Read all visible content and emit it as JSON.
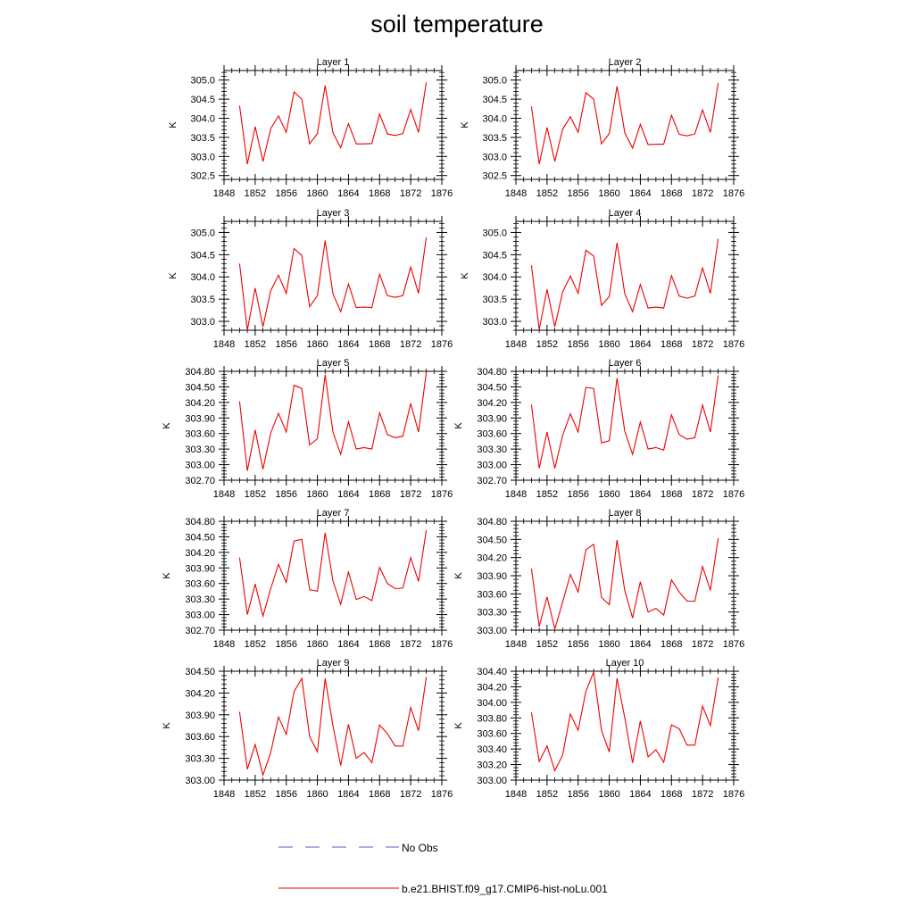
{
  "title": "soil temperature",
  "legend": {
    "entries": [
      {
        "label": "No Obs",
        "color": "#5b5bc8",
        "style": "dashed"
      },
      {
        "label": "b.e21.BHIST.f09_g17.CMIP6-hist-noLu.001",
        "color": "#ee0000",
        "style": "solid"
      }
    ]
  },
  "chart_data": [
    {
      "type": "line",
      "title": "Layer 1",
      "ylabel": "K",
      "xlim": [
        1848,
        1876
      ],
      "ylim": [
        302.4,
        305.25
      ],
      "xticks": [
        "1848",
        "1852",
        "1856",
        "1860",
        "1864",
        "1868",
        "1872",
        "1876"
      ],
      "yticks": [
        "302.5",
        "303.0",
        "303.5",
        "304.0",
        "304.5",
        "305.0"
      ],
      "x": [
        1850,
        1851,
        1852,
        1853,
        1854,
        1855,
        1856,
        1857,
        1858,
        1859,
        1860,
        1861,
        1862,
        1863,
        1864,
        1865,
        1866,
        1867,
        1868,
        1869,
        1870,
        1871,
        1872,
        1873,
        1874
      ],
      "series": [
        {
          "name": "b.e21.BHIST.f09_g17.CMIP6-hist-noLu.001",
          "color": "#ee0000",
          "values": [
            304.33,
            302.8,
            303.78,
            302.87,
            303.73,
            304.06,
            303.63,
            304.69,
            304.5,
            303.33,
            303.6,
            304.86,
            303.62,
            303.23,
            303.86,
            303.33,
            303.33,
            303.34,
            304.11,
            303.59,
            303.55,
            303.6,
            304.23,
            303.63,
            304.94
          ]
        }
      ]
    },
    {
      "type": "line",
      "title": "Layer 2",
      "ylabel": "K",
      "xlim": [
        1848,
        1876
      ],
      "ylim": [
        302.4,
        305.25
      ],
      "xticks": [
        "1848",
        "1852",
        "1856",
        "1860",
        "1864",
        "1868",
        "1872",
        "1876"
      ],
      "yticks": [
        "302.5",
        "303.0",
        "303.5",
        "304.0",
        "304.5",
        "305.0"
      ],
      "x": [
        1850,
        1851,
        1852,
        1853,
        1854,
        1855,
        1856,
        1857,
        1858,
        1859,
        1860,
        1861,
        1862,
        1863,
        1864,
        1865,
        1866,
        1867,
        1868,
        1869,
        1870,
        1871,
        1872,
        1873,
        1874
      ],
      "series": [
        {
          "name": "b.e21.BHIST.f09_g17.CMIP6-hist-noLu.001",
          "color": "#ee0000",
          "values": [
            304.31,
            302.8,
            303.76,
            302.87,
            303.71,
            304.04,
            303.63,
            304.67,
            304.5,
            303.33,
            303.6,
            304.84,
            303.62,
            303.22,
            303.84,
            303.31,
            303.32,
            303.32,
            304.08,
            303.58,
            303.54,
            303.59,
            304.22,
            303.63,
            304.92
          ]
        }
      ]
    },
    {
      "type": "line",
      "title": "Layer 3",
      "ylabel": "K",
      "xlim": [
        1848,
        1876
      ],
      "ylim": [
        302.8,
        305.25
      ],
      "xticks": [
        "1848",
        "1852",
        "1856",
        "1860",
        "1864",
        "1868",
        "1872",
        "1876"
      ],
      "yticks": [
        "303.0",
        "303.5",
        "304.0",
        "304.5",
        "305.0"
      ],
      "x": [
        1850,
        1851,
        1852,
        1853,
        1854,
        1855,
        1856,
        1857,
        1858,
        1859,
        1860,
        1861,
        1862,
        1863,
        1864,
        1865,
        1866,
        1867,
        1868,
        1869,
        1870,
        1871,
        1872,
        1873,
        1874
      ],
      "series": [
        {
          "name": "b.e21.BHIST.f09_g17.CMIP6-hist-noLu.001",
          "color": "#ee0000",
          "values": [
            304.3,
            302.8,
            303.75,
            302.88,
            303.69,
            304.04,
            303.63,
            304.64,
            304.48,
            303.33,
            303.58,
            304.82,
            303.62,
            303.22,
            303.84,
            303.31,
            303.32,
            303.31,
            304.06,
            303.58,
            303.54,
            303.58,
            304.22,
            303.63,
            304.89
          ]
        }
      ]
    },
    {
      "type": "line",
      "title": "Layer 4",
      "ylabel": "K",
      "xlim": [
        1848,
        1876
      ],
      "ylim": [
        302.8,
        305.25
      ],
      "xticks": [
        "1848",
        "1852",
        "1856",
        "1860",
        "1864",
        "1868",
        "1872",
        "1876"
      ],
      "yticks": [
        "303.0",
        "303.5",
        "304.0",
        "304.5",
        "305.0"
      ],
      "x": [
        1850,
        1851,
        1852,
        1853,
        1854,
        1855,
        1856,
        1857,
        1858,
        1859,
        1860,
        1861,
        1862,
        1863,
        1864,
        1865,
        1866,
        1867,
        1868,
        1869,
        1870,
        1871,
        1872,
        1873,
        1874
      ],
      "series": [
        {
          "name": "b.e21.BHIST.f09_g17.CMIP6-hist-noLu.001",
          "color": "#ee0000",
          "values": [
            304.26,
            302.82,
            303.72,
            302.88,
            303.66,
            304.02,
            303.63,
            304.6,
            304.47,
            303.36,
            303.56,
            304.77,
            303.62,
            303.22,
            303.83,
            303.3,
            303.32,
            303.3,
            304.03,
            303.57,
            303.52,
            303.57,
            304.2,
            303.63,
            304.86
          ]
        }
      ]
    },
    {
      "type": "line",
      "title": "Layer 5",
      "ylabel": "K",
      "xlim": [
        1848,
        1876
      ],
      "ylim": [
        302.7,
        304.8
      ],
      "xticks": [
        "1848",
        "1852",
        "1856",
        "1860",
        "1864",
        "1868",
        "1872",
        "1876"
      ],
      "yticks": [
        "302.70",
        "303.00",
        "303.30",
        "303.60",
        "303.90",
        "304.20",
        "304.50",
        "304.80"
      ],
      "x": [
        1850,
        1851,
        1852,
        1853,
        1854,
        1855,
        1856,
        1857,
        1858,
        1859,
        1860,
        1861,
        1862,
        1863,
        1864,
        1865,
        1866,
        1867,
        1868,
        1869,
        1870,
        1871,
        1872,
        1873,
        1874
      ],
      "series": [
        {
          "name": "b.e21.BHIST.f09_g17.CMIP6-hist-noLu.001",
          "color": "#ee0000",
          "values": [
            304.22,
            302.88,
            303.67,
            302.91,
            303.61,
            303.99,
            303.63,
            304.53,
            304.47,
            303.38,
            303.5,
            304.73,
            303.63,
            303.2,
            303.83,
            303.3,
            303.33,
            303.3,
            304.0,
            303.58,
            303.52,
            303.55,
            304.18,
            303.63,
            304.78
          ]
        }
      ]
    },
    {
      "type": "line",
      "title": "Layer 6",
      "ylabel": "K",
      "xlim": [
        1848,
        1876
      ],
      "ylim": [
        302.7,
        304.8
      ],
      "xticks": [
        "1848",
        "1852",
        "1856",
        "1860",
        "1864",
        "1868",
        "1872",
        "1876"
      ],
      "yticks": [
        "302.70",
        "303.00",
        "303.30",
        "303.60",
        "303.90",
        "304.20",
        "304.50",
        "304.80"
      ],
      "x": [
        1850,
        1851,
        1852,
        1853,
        1854,
        1855,
        1856,
        1857,
        1858,
        1859,
        1860,
        1861,
        1862,
        1863,
        1864,
        1865,
        1866,
        1867,
        1868,
        1869,
        1870,
        1871,
        1872,
        1873,
        1874
      ],
      "series": [
        {
          "name": "b.e21.BHIST.f09_g17.CMIP6-hist-noLu.001",
          "color": "#ee0000",
          "values": [
            304.16,
            302.93,
            303.63,
            302.93,
            303.56,
            303.98,
            303.63,
            304.49,
            304.47,
            303.42,
            303.46,
            304.67,
            303.64,
            303.2,
            303.82,
            303.3,
            303.33,
            303.28,
            303.96,
            303.58,
            303.49,
            303.52,
            304.15,
            303.63,
            304.72
          ]
        }
      ]
    },
    {
      "type": "line",
      "title": "Layer 7",
      "ylabel": "K",
      "xlim": [
        1848,
        1876
      ],
      "ylim": [
        302.7,
        304.8
      ],
      "xticks": [
        "1848",
        "1852",
        "1856",
        "1860",
        "1864",
        "1868",
        "1872",
        "1876"
      ],
      "yticks": [
        "302.70",
        "303.00",
        "303.30",
        "303.60",
        "303.90",
        "304.20",
        "304.50",
        "304.80"
      ],
      "x": [
        1850,
        1851,
        1852,
        1853,
        1854,
        1855,
        1856,
        1857,
        1858,
        1859,
        1860,
        1861,
        1862,
        1863,
        1864,
        1865,
        1866,
        1867,
        1868,
        1869,
        1870,
        1871,
        1872,
        1873,
        1874
      ],
      "series": [
        {
          "name": "b.e21.BHIST.f09_g17.CMIP6-hist-noLu.001",
          "color": "#ee0000",
          "values": [
            304.1,
            303.0,
            303.59,
            302.97,
            303.5,
            303.97,
            303.62,
            304.42,
            304.45,
            303.48,
            303.45,
            304.58,
            303.65,
            303.2,
            303.82,
            303.29,
            303.35,
            303.27,
            303.91,
            303.6,
            303.5,
            303.51,
            304.1,
            303.64,
            304.63
          ]
        }
      ]
    },
    {
      "type": "line",
      "title": "Layer 8",
      "ylabel": "K",
      "xlim": [
        1848,
        1876
      ],
      "ylim": [
        303.0,
        304.8
      ],
      "xticks": [
        "1848",
        "1852",
        "1856",
        "1860",
        "1864",
        "1868",
        "1872",
        "1876"
      ],
      "yticks": [
        "303.00",
        "303.30",
        "303.60",
        "303.90",
        "304.20",
        "304.50",
        "304.80"
      ],
      "x": [
        1850,
        1851,
        1852,
        1853,
        1854,
        1855,
        1856,
        1857,
        1858,
        1859,
        1860,
        1861,
        1862,
        1863,
        1864,
        1865,
        1866,
        1867,
        1868,
        1869,
        1870,
        1871,
        1872,
        1873,
        1874
      ],
      "series": [
        {
          "name": "b.e21.BHIST.f09_g17.CMIP6-hist-noLu.001",
          "color": "#ee0000",
          "values": [
            304.02,
            303.06,
            303.55,
            303.02,
            303.46,
            303.92,
            303.63,
            304.33,
            304.42,
            303.54,
            303.42,
            304.49,
            303.65,
            303.2,
            303.8,
            303.3,
            303.36,
            303.25,
            303.83,
            303.63,
            303.48,
            303.48,
            304.05,
            303.66,
            304.52
          ]
        }
      ]
    },
    {
      "type": "line",
      "title": "Layer 9",
      "ylabel": "K",
      "xlim": [
        1848,
        1876
      ],
      "ylim": [
        303.0,
        304.5
      ],
      "xticks": [
        "1848",
        "1852",
        "1856",
        "1860",
        "1864",
        "1868",
        "1872",
        "1876"
      ],
      "yticks": [
        "303.00",
        "303.30",
        "303.60",
        "303.90",
        "304.20",
        "304.50"
      ],
      "x": [
        1850,
        1851,
        1852,
        1853,
        1854,
        1855,
        1856,
        1857,
        1858,
        1859,
        1860,
        1861,
        1862,
        1863,
        1864,
        1865,
        1866,
        1867,
        1868,
        1869,
        1870,
        1871,
        1872,
        1873,
        1874
      ],
      "series": [
        {
          "name": "b.e21.BHIST.f09_g17.CMIP6-hist-noLu.001",
          "color": "#ee0000",
          "values": [
            303.94,
            303.15,
            303.49,
            303.07,
            303.38,
            303.87,
            303.63,
            304.22,
            304.4,
            303.6,
            303.39,
            304.4,
            303.75,
            303.2,
            303.77,
            303.3,
            303.38,
            303.24,
            303.76,
            303.64,
            303.47,
            303.47,
            304.0,
            303.68,
            304.42
          ]
        }
      ]
    },
    {
      "type": "line",
      "title": "Layer 10",
      "ylabel": "K",
      "xlim": [
        1848,
        1876
      ],
      "ylim": [
        303.0,
        304.4
      ],
      "xticks": [
        "1848",
        "1852",
        "1856",
        "1860",
        "1864",
        "1868",
        "1872",
        "1876"
      ],
      "yticks": [
        "303.00",
        "303.20",
        "303.40",
        "303.60",
        "303.80",
        "304.00",
        "304.20",
        "304.40"
      ],
      "x": [
        1850,
        1851,
        1852,
        1853,
        1854,
        1855,
        1856,
        1857,
        1858,
        1859,
        1860,
        1861,
        1862,
        1863,
        1864,
        1865,
        1866,
        1867,
        1868,
        1869,
        1870,
        1871,
        1872,
        1873,
        1874
      ],
      "series": [
        {
          "name": "b.e21.BHIST.f09_g17.CMIP6-hist-noLu.001",
          "color": "#ee0000",
          "values": [
            303.87,
            303.24,
            303.44,
            303.12,
            303.32,
            303.85,
            303.64,
            304.14,
            304.39,
            303.64,
            303.36,
            304.31,
            303.8,
            303.22,
            303.76,
            303.3,
            303.39,
            303.23,
            303.71,
            303.66,
            303.45,
            303.45,
            303.95,
            303.7,
            304.32
          ]
        }
      ]
    }
  ]
}
